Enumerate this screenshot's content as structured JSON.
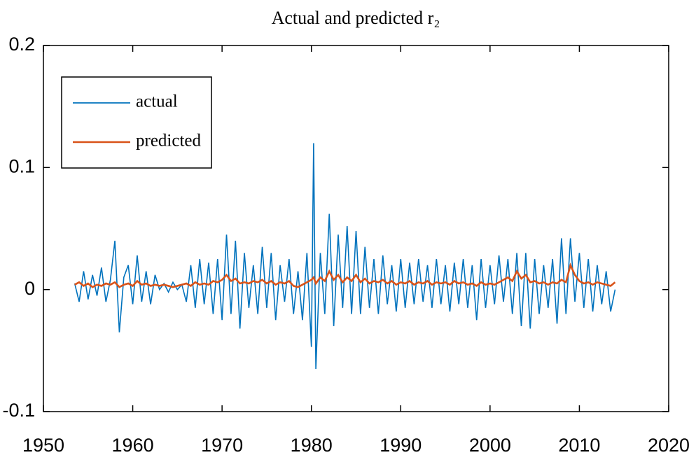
{
  "chart_data": {
    "type": "line",
    "title": "Actual and predicted r₂",
    "x": [
      1953.5,
      1954,
      1954.5,
      1955,
      1955.5,
      1956,
      1956.5,
      1957,
      1957.5,
      1958,
      1958.5,
      1959,
      1959.5,
      1960,
      1960.5,
      1961,
      1961.5,
      1962,
      1962.5,
      1963,
      1963.5,
      1964,
      1964.5,
      1965,
      1965.5,
      1966,
      1966.5,
      1967,
      1967.5,
      1968,
      1968.5,
      1969,
      1969.5,
      1970,
      1970.5,
      1971,
      1971.5,
      1972,
      1972.5,
      1973,
      1973.5,
      1974,
      1974.5,
      1975,
      1975.5,
      1976,
      1976.5,
      1977,
      1977.5,
      1978,
      1978.5,
      1979,
      1979.5,
      1980,
      1980.25,
      1980.5,
      1981,
      1981.5,
      1982,
      1982.5,
      1983,
      1983.5,
      1984,
      1984.5,
      1985,
      1985.5,
      1986,
      1986.5,
      1987,
      1987.5,
      1988,
      1988.5,
      1989,
      1989.5,
      1990,
      1990.5,
      1991,
      1991.5,
      1992,
      1992.5,
      1993,
      1993.5,
      1994,
      1994.5,
      1995,
      1995.5,
      1996,
      1996.5,
      1997,
      1997.5,
      1998,
      1998.5,
      1999,
      1999.5,
      2000,
      2000.5,
      2001,
      2001.5,
      2002,
      2002.5,
      2003,
      2003.5,
      2004,
      2004.5,
      2005,
      2005.5,
      2006,
      2006.5,
      2007,
      2007.5,
      2008,
      2008.5,
      2009,
      2009.5,
      2010,
      2010.5,
      2011,
      2011.5,
      2012,
      2012.5,
      2013,
      2013.5,
      2014
    ],
    "series": [
      {
        "name": "actual",
        "color": "#0072bd",
        "values": [
          0.005,
          -0.01,
          0.015,
          -0.008,
          0.012,
          -0.005,
          0.018,
          -0.01,
          0.008,
          0.04,
          -0.035,
          0.01,
          0.02,
          -0.012,
          0.028,
          -0.01,
          0.015,
          -0.012,
          0.012,
          0.0,
          0.005,
          -0.002,
          0.006,
          0.0,
          0.004,
          -0.01,
          0.02,
          -0.015,
          0.025,
          -0.012,
          0.022,
          -0.02,
          0.025,
          -0.025,
          0.045,
          -0.02,
          0.04,
          -0.032,
          0.03,
          -0.015,
          0.02,
          -0.02,
          0.035,
          -0.015,
          0.03,
          -0.025,
          0.02,
          -0.01,
          0.025,
          -0.02,
          0.015,
          -0.025,
          0.03,
          -0.047,
          0.12,
          -0.065,
          0.03,
          -0.02,
          0.062,
          -0.03,
          0.045,
          -0.015,
          0.052,
          -0.02,
          0.048,
          -0.02,
          0.035,
          -0.015,
          0.025,
          -0.02,
          0.028,
          -0.012,
          0.02,
          -0.018,
          0.025,
          -0.015,
          0.022,
          -0.012,
          0.025,
          -0.01,
          0.02,
          -0.015,
          0.025,
          -0.012,
          0.02,
          -0.018,
          0.022,
          -0.012,
          0.025,
          -0.015,
          0.02,
          -0.025,
          0.025,
          -0.015,
          0.02,
          -0.012,
          0.028,
          -0.01,
          0.025,
          -0.02,
          0.03,
          -0.03,
          0.03,
          -0.032,
          0.025,
          -0.02,
          0.02,
          -0.015,
          0.025,
          -0.028,
          0.042,
          -0.02,
          0.042,
          -0.01,
          0.03,
          -0.015,
          0.025,
          -0.018,
          0.02,
          -0.012,
          0.015,
          -0.018,
          0.0
        ]
      },
      {
        "name": "predicted",
        "color": "#d95319",
        "values": [
          0.004,
          0.006,
          0.003,
          0.005,
          0.002,
          0.004,
          0.003,
          0.005,
          0.004,
          0.006,
          0.002,
          0.004,
          0.005,
          0.003,
          0.007,
          0.004,
          0.005,
          0.003,
          0.004,
          0.003,
          0.004,
          0.003,
          0.002,
          0.003,
          0.004,
          0.005,
          0.003,
          0.006,
          0.004,
          0.005,
          0.004,
          0.007,
          0.006,
          0.008,
          0.012,
          0.007,
          0.009,
          0.005,
          0.006,
          0.005,
          0.007,
          0.006,
          0.008,
          0.005,
          0.007,
          0.004,
          0.006,
          0.005,
          0.007,
          0.003,
          0.002,
          0.004,
          0.006,
          0.008,
          0.01,
          0.005,
          0.01,
          0.007,
          0.015,
          0.008,
          0.012,
          0.006,
          0.01,
          0.007,
          0.012,
          0.006,
          0.009,
          0.005,
          0.007,
          0.006,
          0.008,
          0.005,
          0.007,
          0.004,
          0.006,
          0.005,
          0.007,
          0.004,
          0.006,
          0.005,
          0.007,
          0.004,
          0.006,
          0.005,
          0.006,
          0.004,
          0.007,
          0.005,
          0.006,
          0.004,
          0.005,
          0.003,
          0.006,
          0.004,
          0.005,
          0.004,
          0.006,
          0.008,
          0.01,
          0.007,
          0.015,
          0.009,
          0.012,
          0.006,
          0.007,
          0.005,
          0.006,
          0.004,
          0.006,
          0.005,
          0.008,
          0.006,
          0.02,
          0.012,
          0.007,
          0.005,
          0.006,
          0.004,
          0.006,
          0.005,
          0.004,
          0.003,
          0.006
        ]
      }
    ],
    "xlim": [
      1950,
      2020
    ],
    "xticks": [
      1950,
      1960,
      1970,
      1980,
      1990,
      2000,
      2010,
      2020
    ],
    "ylim": [
      -0.1,
      0.2
    ],
    "yticks": [
      -0.1,
      0,
      0.1,
      0.2
    ],
    "legend": "upper left"
  }
}
